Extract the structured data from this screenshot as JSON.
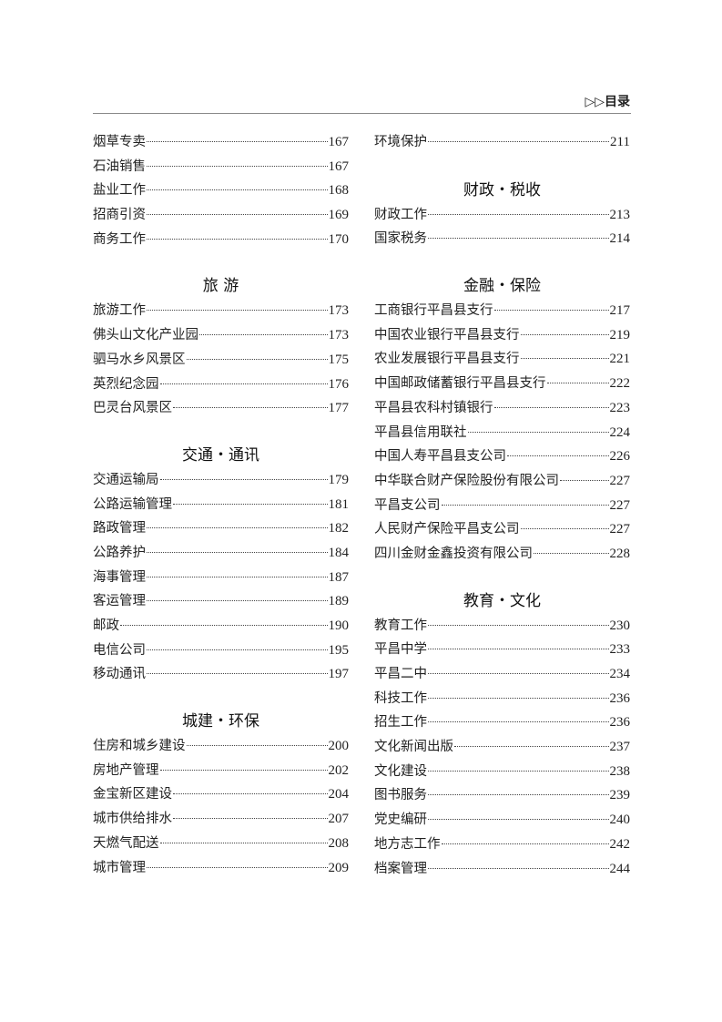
{
  "running_head": "▷▷目录",
  "left_column": [
    {
      "type": "entry",
      "title": "烟草专卖",
      "page": "167"
    },
    {
      "type": "entry",
      "title": "石油销售",
      "page": "167"
    },
    {
      "type": "entry",
      "title": "盐业工作",
      "page": "168"
    },
    {
      "type": "entry",
      "title": "招商引资",
      "page": "169"
    },
    {
      "type": "entry",
      "title": "商务工作",
      "page": "170"
    },
    {
      "type": "heading",
      "title": "旅 游"
    },
    {
      "type": "entry",
      "title": "旅游工作",
      "page": "173"
    },
    {
      "type": "entry",
      "title": "佛头山文化产业园",
      "page": "173"
    },
    {
      "type": "entry",
      "title": "驷马水乡风景区",
      "page": "175"
    },
    {
      "type": "entry",
      "title": "英烈纪念园",
      "page": "176"
    },
    {
      "type": "entry",
      "title": "巴灵台风景区",
      "page": "177"
    },
    {
      "type": "heading",
      "title": "交通・通讯"
    },
    {
      "type": "entry",
      "title": "交通运输局",
      "page": "179"
    },
    {
      "type": "entry",
      "title": "公路运输管理",
      "page": "181"
    },
    {
      "type": "entry",
      "title": "路政管理",
      "page": "182"
    },
    {
      "type": "entry",
      "title": "公路养护",
      "page": "184"
    },
    {
      "type": "entry",
      "title": "海事管理",
      "page": "187"
    },
    {
      "type": "entry",
      "title": "客运管理",
      "page": "189"
    },
    {
      "type": "entry",
      "title": "邮政",
      "page": "190"
    },
    {
      "type": "entry",
      "title": "电信公司",
      "page": "195"
    },
    {
      "type": "entry",
      "title": "移动通讯",
      "page": "197"
    },
    {
      "type": "heading",
      "title": "城建・环保"
    },
    {
      "type": "entry",
      "title": "住房和城乡建设",
      "page": "200"
    },
    {
      "type": "entry",
      "title": "房地产管理",
      "page": "202"
    },
    {
      "type": "entry",
      "title": "金宝新区建设",
      "page": "204"
    },
    {
      "type": "entry",
      "title": "城市供给排水",
      "page": "207"
    },
    {
      "type": "entry",
      "title": "天燃气配送",
      "page": "208"
    },
    {
      "type": "entry",
      "title": "城市管理",
      "page": "209"
    }
  ],
  "right_column": [
    {
      "type": "entry",
      "title": "环境保护",
      "page": "211"
    },
    {
      "type": "heading",
      "title": "财政・税收"
    },
    {
      "type": "entry",
      "title": "财政工作",
      "page": "213"
    },
    {
      "type": "entry",
      "title": "国家税务",
      "page": "214"
    },
    {
      "type": "heading",
      "title": "金融・保险"
    },
    {
      "type": "entry",
      "title": "工商银行平昌县支行",
      "page": "217"
    },
    {
      "type": "entry",
      "title": "中国农业银行平昌县支行",
      "page": "219"
    },
    {
      "type": "entry",
      "title": "农业发展银行平昌县支行",
      "page": "221"
    },
    {
      "type": "entry",
      "title": "中国邮政储蓄银行平昌县支行",
      "page": "222"
    },
    {
      "type": "entry",
      "title": "平昌县农科村镇银行",
      "page": "223"
    },
    {
      "type": "entry",
      "title": "平昌县信用联社",
      "page": "224"
    },
    {
      "type": "entry",
      "title": "中国人寿平昌县支公司",
      "page": "226"
    },
    {
      "type": "entry",
      "title": "中华联合财产保险股份有限公司",
      "page": "227"
    },
    {
      "type": "entry",
      "title": "平昌支公司",
      "page": "227"
    },
    {
      "type": "entry",
      "title": "人民财产保险平昌支公司",
      "page": "227"
    },
    {
      "type": "entry",
      "title": "四川金财金鑫投资有限公司",
      "page": "228"
    },
    {
      "type": "heading",
      "title": "教育・文化"
    },
    {
      "type": "entry",
      "title": "教育工作",
      "page": "230"
    },
    {
      "type": "entry",
      "title": "平昌中学",
      "page": "233"
    },
    {
      "type": "entry",
      "title": "平昌二中",
      "page": "234"
    },
    {
      "type": "entry",
      "title": "科技工作",
      "page": "236"
    },
    {
      "type": "entry",
      "title": "招生工作",
      "page": "236"
    },
    {
      "type": "entry",
      "title": "文化新闻出版",
      "page": "237"
    },
    {
      "type": "entry",
      "title": "文化建设",
      "page": "238"
    },
    {
      "type": "entry",
      "title": "图书服务",
      "page": "239"
    },
    {
      "type": "entry",
      "title": "党史编研",
      "page": "240"
    },
    {
      "type": "entry",
      "title": "地方志工作",
      "page": "242"
    },
    {
      "type": "entry",
      "title": "档案管理",
      "page": "244"
    }
  ]
}
